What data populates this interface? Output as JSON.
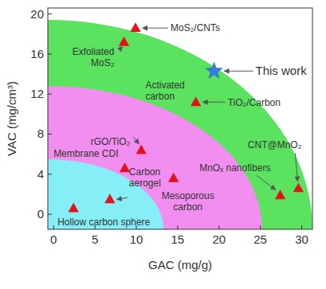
{
  "chart_data": {
    "type": "scatter",
    "x_label": "GAC (mg/g)",
    "y_label": "VAC (mg/cm³)",
    "xlim": [
      -0.7,
      31.3
    ],
    "ylim": [
      -1.5,
      20.6
    ],
    "xticks": [
      0,
      5,
      10,
      15,
      20,
      25,
      30
    ],
    "yticks": [
      0,
      4,
      8,
      12,
      16,
      20
    ],
    "grid": false,
    "regions": [
      {
        "color": "#5be35f",
        "x_end": 31.3,
        "y_end": 19.4
      },
      {
        "color": "#f28ef0",
        "x_end": 25.2,
        "y_end": 12.8
      },
      {
        "color": "#86eef6",
        "x_end": 13.3,
        "y_end": 5.5
      }
    ],
    "series": [
      {
        "color": "#e3121c",
        "marker": "triangle",
        "x": [
          2.4,
          6.8,
          8.6,
          10.6,
          14.5,
          17.2,
          27.4,
          29.6,
          8.5,
          9.9
        ],
        "values": [
          0.6,
          1.5,
          4.6,
          6.4,
          3.6,
          11.2,
          1.9,
          2.6,
          17.2,
          18.6
        ],
        "labels": [
          "Hollow carbon sphere",
          "Carbon aerogel",
          "Membrane CDI",
          "rGO/TiO₂",
          "Mesoporous carbon",
          "TiO₂/Carbon",
          "MnOₓ nanofibers",
          "CNT@MnO₂",
          "Exfoliated MoS₂",
          "MoS₂/CNTs"
        ]
      },
      {
        "color": "#3a7de0",
        "marker": "star",
        "x": [
          19.4
        ],
        "values": [
          14.3
        ],
        "labels": [
          "This work"
        ]
      }
    ],
    "annotations": [
      {
        "text": "Activated carbon",
        "x": 11.1,
        "y": 12.6
      }
    ]
  }
}
